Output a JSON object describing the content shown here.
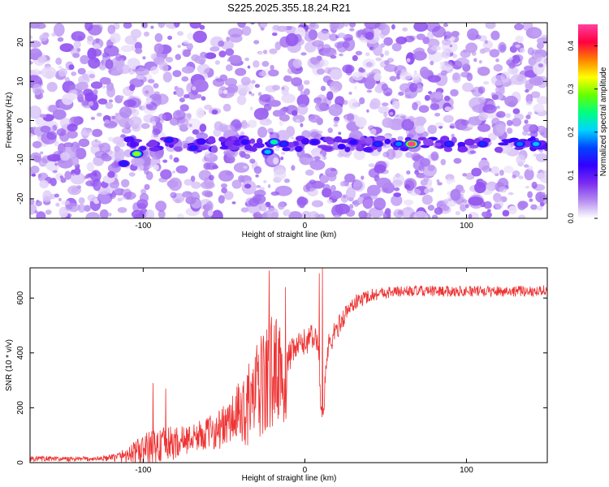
{
  "title": "S225.2025.355.18.24.R21",
  "chart_data": [
    {
      "type": "heatmap",
      "title": "S225.2025.355.18.24.R21",
      "xlabel": "Height of straight line (km)",
      "ylabel": "Frequency (Hz)",
      "xlim": [
        -170,
        150
      ],
      "ylim": [
        -25,
        25
      ],
      "xticks": [
        -100,
        0,
        100
      ],
      "xtick_labels": [
        "-100",
        "0",
        "100"
      ],
      "yticks": [
        -20,
        -10,
        0,
        10,
        20
      ],
      "ytick_labels": [
        "-20",
        "-10",
        "0",
        "10",
        "20"
      ],
      "colorbar": {
        "label": "Normalized spectral amplitude",
        "range": [
          0.0,
          0.45
        ],
        "ticks": [
          0.0,
          0.1,
          0.2,
          0.3,
          0.4
        ],
        "tick_labels": [
          "0.0",
          "0.1",
          "0.2",
          "0.3",
          "0.4"
        ],
        "colormap": [
          "#ffffff",
          "#b58cf0",
          "#7a2cf0",
          "#3300ff",
          "#0044ff",
          "#00d4ff",
          "#00ff80",
          "#66ff00",
          "#ffff00",
          "#ff8000",
          "#ff0040",
          "#ff40a0"
        ]
      },
      "background_level": 0.05,
      "signal_band_frequency_hz": -6,
      "signal_band_x_range": [
        -110,
        150
      ],
      "peaks": [
        {
          "x": -104,
          "y": -8.5,
          "value": 0.3
        },
        {
          "x": -112,
          "y": -11,
          "value": 0.14
        },
        {
          "x": -84,
          "y": -5,
          "value": 0.14
        },
        {
          "x": -69,
          "y": -7,
          "value": 0.14
        },
        {
          "x": -37,
          "y": -5.5,
          "value": 0.13
        },
        {
          "x": -19,
          "y": -5.5,
          "value": 0.24
        },
        {
          "x": -23,
          "y": -8,
          "value": 0.2
        },
        {
          "x": -13,
          "y": -6,
          "value": 0.15
        },
        {
          "x": 6,
          "y": -5.5,
          "value": 0.13
        },
        {
          "x": 30,
          "y": -5.5,
          "value": 0.13
        },
        {
          "x": 45,
          "y": -6,
          "value": 0.15
        },
        {
          "x": 58,
          "y": -6,
          "value": 0.18
        },
        {
          "x": 66,
          "y": -6,
          "value": 0.45
        },
        {
          "x": 89,
          "y": -6,
          "value": 0.15
        },
        {
          "x": 110,
          "y": -6,
          "value": 0.15
        },
        {
          "x": 133,
          "y": -6,
          "value": 0.18
        },
        {
          "x": 143,
          "y": -6,
          "value": 0.2
        }
      ]
    },
    {
      "type": "line",
      "xlabel": "Height of straight line (km)",
      "ylabel": "SNR (10 * v/v)",
      "xlim": [
        -170,
        150
      ],
      "ylim": [
        0,
        710
      ],
      "xticks": [
        -100,
        0,
        100
      ],
      "xtick_labels": [
        "-100",
        "0",
        "100"
      ],
      "yticks": [
        0,
        200,
        400,
        600
      ],
      "ytick_labels": [
        "0",
        "200",
        "400",
        "600"
      ],
      "color": "#ee3333",
      "x": [
        -170,
        -160,
        -150,
        -140,
        -130,
        -120,
        -110,
        -100,
        -90,
        -80,
        -70,
        -60,
        -50,
        -40,
        -35,
        -30,
        -25,
        -20,
        -18,
        -15,
        -12,
        -10,
        -5,
        0,
        5,
        8,
        10,
        11,
        12,
        13,
        15,
        20,
        25,
        30,
        40,
        50,
        60,
        70,
        80,
        90,
        100,
        110,
        120,
        130,
        140,
        150
      ],
      "y": [
        15,
        14,
        13,
        13,
        14,
        17,
        28,
        45,
        62,
        72,
        90,
        108,
        130,
        180,
        210,
        250,
        290,
        330,
        350,
        330,
        250,
        380,
        420,
        440,
        460,
        440,
        200,
        150,
        230,
        350,
        430,
        490,
        540,
        580,
        610,
        620,
        625,
        625,
        625,
        625,
        625,
        625,
        625,
        625,
        625,
        630
      ],
      "noise_amplitude": [
        10,
        10,
        9,
        9,
        9,
        12,
        30,
        60,
        70,
        60,
        50,
        60,
        80,
        120,
        150,
        180,
        200,
        220,
        200,
        160,
        120,
        60,
        50,
        50,
        50,
        40,
        30,
        30,
        60,
        60,
        50,
        40,
        35,
        30,
        25,
        22,
        20,
        20,
        20,
        20,
        20,
        20,
        20,
        20,
        20,
        20
      ],
      "spikes": [
        {
          "x": -94,
          "y": 290
        },
        {
          "x": -86,
          "y": 270
        },
        {
          "x": -22,
          "y": 700
        },
        {
          "x": -12,
          "y": 640
        },
        {
          "x": 9,
          "y": 690
        },
        {
          "x": 11,
          "y": 710
        }
      ]
    }
  ]
}
